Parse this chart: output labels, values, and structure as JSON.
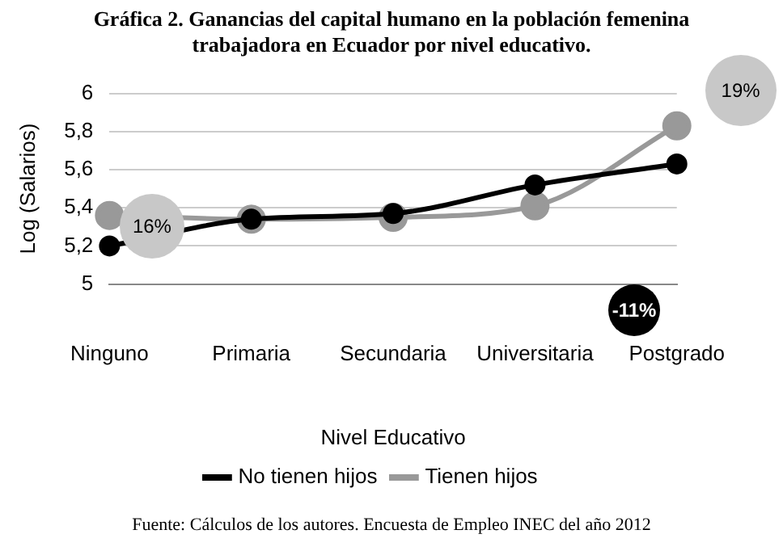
{
  "chart_data": {
    "type": "line",
    "title": "Gráfica 2. Ganancias del capital humano en la población femenina trabajadora en Ecuador por nivel educativo.",
    "xlabel": "Nivel Educativo",
    "ylabel": "Log (Salarios)",
    "categories": [
      "Ninguno",
      "Primaria",
      "Secundaria",
      "Universitaria",
      "Postgrado"
    ],
    "series": [
      {
        "name": "No tienen hijos",
        "color": "#000000",
        "values": [
          5.2,
          5.34,
          5.37,
          5.52,
          5.63
        ]
      },
      {
        "name": "Tienen hijos",
        "color": "#999999",
        "values": [
          5.36,
          5.34,
          5.35,
          5.41,
          5.83
        ]
      }
    ],
    "ylim": [
      5,
      6
    ],
    "yticks": [
      5,
      {
        "value": 5.2,
        "label": "5,2"
      },
      {
        "value": 5.4,
        "label": "5,4"
      },
      {
        "value": 5.6,
        "label": "5,6"
      },
      {
        "value": 5.8,
        "label": "5,8"
      },
      6
    ],
    "grid": "y",
    "legend": "bottom",
    "marker": "circle",
    "line_style": "solid",
    "annotations": [
      "16%",
      "19%",
      "-11%",
      "Fuente: Cálculos de los autores. Encuesta de Empleo INEC del año 2012"
    ]
  }
}
